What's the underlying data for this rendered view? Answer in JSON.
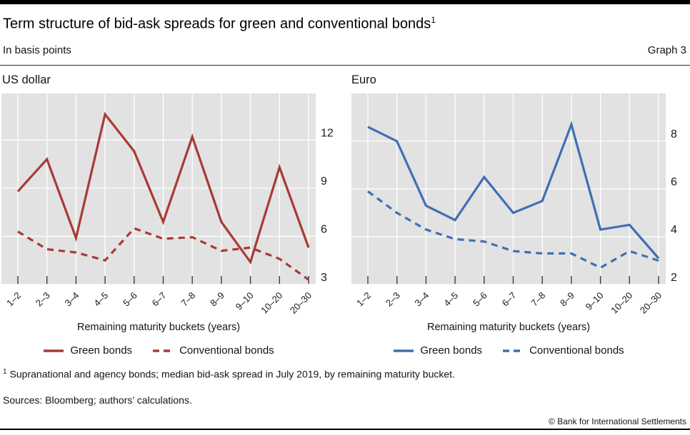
{
  "header": {
    "title": "Term structure of bid-ask spreads for green and conventional bonds",
    "title_footnote_marker": "1",
    "subtitle": "In basis points",
    "graph_label": "Graph 3"
  },
  "chart_data": [
    {
      "type": "line",
      "title": "US dollar",
      "categories": [
        "1–2",
        "2–3",
        "3–4",
        "4–5",
        "5–6",
        "6–7",
        "7–8",
        "8–9",
        "9–10",
        "10–20",
        "20–30"
      ],
      "xlabel": "Remaining maturity buckets (years)",
      "ylim": [
        3,
        14.9
      ],
      "yticks": [
        3,
        6,
        9,
        12
      ],
      "grid": true,
      "y_axis_side": "right",
      "legend_position": "bottom",
      "color": "#a83a36",
      "plot_bg": "#e2e2e2",
      "series": [
        {
          "name": "Green bonds",
          "style": "solid",
          "values": [
            8.8,
            10.8,
            5.9,
            13.6,
            11.3,
            6.9,
            12.2,
            6.9,
            4.4,
            10.3,
            5.3
          ]
        },
        {
          "name": "Conventional bonds",
          "style": "dashed",
          "values": [
            6.3,
            5.2,
            5.0,
            4.5,
            6.5,
            5.85,
            5.95,
            5.1,
            5.3,
            4.6,
            3.3
          ]
        }
      ]
    },
    {
      "type": "line",
      "title": "Euro",
      "categories": [
        "1–2",
        "2–3",
        "3–4",
        "4–5",
        "5–6",
        "6–7",
        "7–8",
        "8–9",
        "9–10",
        "10–20",
        "20–30"
      ],
      "xlabel": "Remaining maturity buckets (years)",
      "ylim": [
        2,
        10
      ],
      "yticks": [
        2,
        4,
        6,
        8
      ],
      "grid": true,
      "y_axis_side": "right",
      "legend_position": "bottom",
      "color": "#3f6fb3",
      "plot_bg": "#e2e2e2",
      "series": [
        {
          "name": "Green bonds",
          "style": "solid",
          "values": [
            8.6,
            8.0,
            5.3,
            4.7,
            6.5,
            5.0,
            5.5,
            8.7,
            4.3,
            4.5,
            3.1
          ]
        },
        {
          "name": "Conventional bonds",
          "style": "dashed",
          "values": [
            5.9,
            5.0,
            4.3,
            3.9,
            3.8,
            3.4,
            3.3,
            3.3,
            2.7,
            3.4,
            3.0
          ]
        }
      ]
    }
  ],
  "footnote": {
    "marker": "1",
    "text": "Supranational and agency bonds; median bid-ask spread in July 2019, by remaining maturity bucket."
  },
  "sources": "Sources: Bloomberg; authors’ calculations.",
  "copyright": "© Bank for International Settlements"
}
